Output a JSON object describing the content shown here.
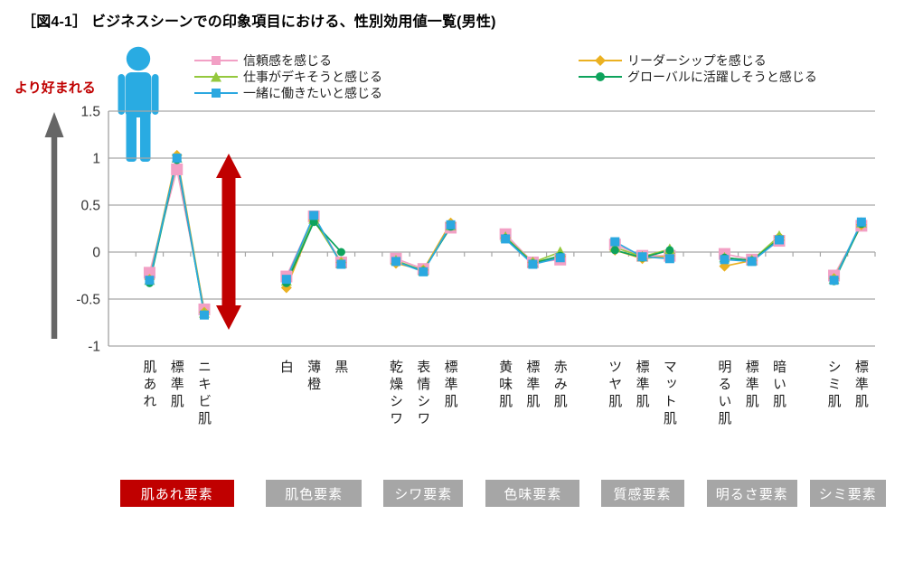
{
  "title": "［図4-1］ ビジネスシーンでの印象項目における、性別効用値一覧(男性)",
  "preferred_axis_label": "より好まれる",
  "colors": {
    "accent_red": "#c00000",
    "badge_gray": "#a6a6a6",
    "grid": "#a6a6a6",
    "axis": "#9a9a9a",
    "gray_arrow": "#666666",
    "person_blue": "#29abe2",
    "title_text": "#000000",
    "tick_text": "#333333"
  },
  "chart_data": {
    "type": "line",
    "title": "［図4-1］ ビジネスシーンでの印象項目における、性別効用値一覧(男性)",
    "ylabel": "より好まれる",
    "ylim": [
      -1,
      1.5
    ],
    "grid": true,
    "legend_position": "top",
    "yticks": [
      {
        "value": 1.5,
        "label": "1.5"
      },
      {
        "value": 1,
        "label": "1"
      },
      {
        "value": 0.5,
        "label": "0.5"
      },
      {
        "value": 0,
        "label": "0"
      },
      {
        "value": -0.5,
        "label": "-0.5"
      },
      {
        "value": -1,
        "label": "-1"
      }
    ],
    "groups": [
      {
        "badge": "肌あれ要素",
        "badge_color": "#c00000",
        "categories": [
          "肌あれ",
          "標準肌",
          "ニキビ肌"
        ]
      },
      {
        "badge": "肌色要素",
        "badge_color": "#a6a6a6",
        "categories": [
          "白",
          "薄橙",
          "黒"
        ]
      },
      {
        "badge": "シワ要素",
        "badge_color": "#a6a6a6",
        "categories": [
          "乾燥シワ",
          "表情シワ",
          "標準肌"
        ]
      },
      {
        "badge": "色味要素",
        "badge_color": "#a6a6a6",
        "categories": [
          "黄味肌",
          "標準肌",
          "赤み肌"
        ]
      },
      {
        "badge": "質感要素",
        "badge_color": "#a6a6a6",
        "categories": [
          "ツヤ肌",
          "標準肌",
          "マット肌"
        ]
      },
      {
        "badge": "明るさ要素",
        "badge_color": "#a6a6a6",
        "categories": [
          "明るい肌",
          "標準肌",
          "暗い肌"
        ]
      },
      {
        "badge": "シミ要素",
        "badge_color": "#a6a6a6",
        "categories": [
          "シミ肌",
          "標準肌"
        ]
      }
    ],
    "series": [
      {
        "name": "信頼感を感じる",
        "marker": "square",
        "color": "#f2a0c5",
        "size": 13,
        "values": [
          [
            -0.22,
            0.88,
            -0.61
          ],
          [
            -0.26,
            0.38,
            -0.11
          ],
          [
            -0.07,
            -0.18,
            0.26
          ],
          [
            0.19,
            -0.11,
            -0.08
          ],
          [
            0.08,
            -0.04,
            -0.04
          ],
          [
            -0.02,
            -0.08,
            0.12
          ],
          [
            -0.25,
            0.28
          ]
        ]
      },
      {
        "name": "リーダーシップを感じる",
        "marker": "diamond",
        "color": "#ebb121",
        "size": 9,
        "values": [
          [
            -0.29,
            1.03,
            -0.64
          ],
          [
            -0.38,
            0.34,
            -0.11
          ],
          [
            -0.12,
            -0.19,
            0.31
          ],
          [
            0.15,
            -0.11,
            -0.05
          ],
          [
            0.02,
            -0.07,
            -0.04
          ],
          [
            -0.15,
            -0.09,
            0.16
          ],
          [
            -0.28,
            0.29
          ]
        ]
      },
      {
        "name": "仕事がデキそうと感じる",
        "marker": "triangle",
        "color": "#94c83d",
        "size": 10,
        "values": [
          [
            -0.3,
            1.0,
            -0.65
          ],
          [
            -0.31,
            0.35,
            -0.12
          ],
          [
            -0.09,
            -0.2,
            0.28
          ],
          [
            0.16,
            -0.11,
            0.0
          ],
          [
            0.05,
            -0.05,
            0.03
          ],
          [
            -0.06,
            -0.09,
            0.17
          ],
          [
            -0.29,
            0.31
          ]
        ]
      },
      {
        "name": "グローバルに活躍しそうと感じる",
        "marker": "circle",
        "color": "#0ea35c",
        "size": 9,
        "values": [
          [
            -0.33,
            0.98,
            -0.67
          ],
          [
            -0.33,
            0.32,
            0.0
          ],
          [
            -0.1,
            -0.2,
            0.27
          ],
          [
            0.15,
            -0.12,
            -0.04
          ],
          [
            0.02,
            -0.06,
            0.02
          ],
          [
            -0.06,
            -0.09,
            0.14
          ],
          [
            -0.31,
            0.3
          ]
        ]
      },
      {
        "name": "一緒に働きたいと感じる",
        "marker": "square",
        "color": "#2ba8e0",
        "size": 10,
        "values": [
          [
            -0.3,
            1.0,
            -0.67
          ],
          [
            -0.29,
            0.39,
            -0.13
          ],
          [
            -0.1,
            -0.21,
            0.29
          ],
          [
            0.14,
            -0.13,
            -0.06
          ],
          [
            0.11,
            -0.05,
            -0.07
          ],
          [
            -0.08,
            -0.1,
            0.13
          ],
          [
            -0.3,
            0.32
          ]
        ]
      }
    ],
    "annotations": [
      {
        "type": "double_arrow",
        "color": "#c00000",
        "from": 1.02,
        "to": -0.82,
        "note": "range emphasis beside ニキビ肌"
      }
    ]
  }
}
